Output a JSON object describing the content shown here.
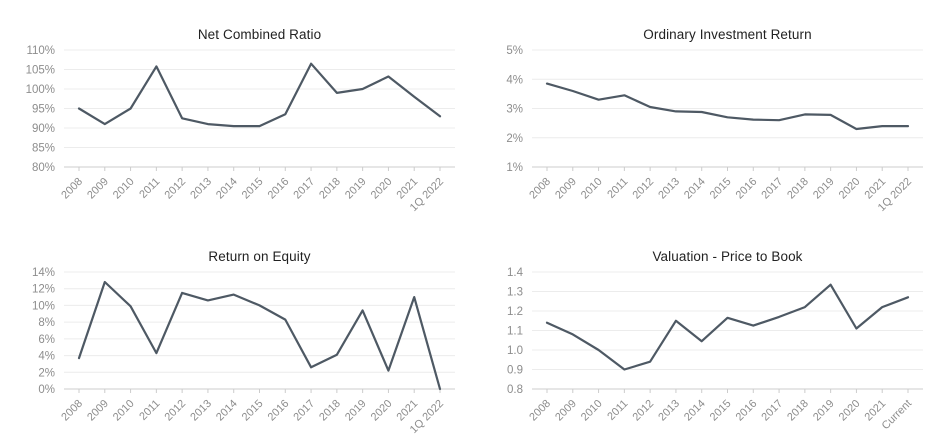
{
  "style": {
    "background": "#ffffff",
    "line_color": "#4e5964",
    "grid_color": "#ececec",
    "axis_color": "#cccccc",
    "tick_label_color": "#8d8d8d",
    "title_color": "#222222"
  },
  "chart_data": [
    {
      "type": "line",
      "title": "Net Combined Ratio",
      "categories": [
        "2008",
        "2009",
        "2010",
        "2011",
        "2012",
        "2013",
        "2014",
        "2015",
        "2016",
        "2017",
        "2018",
        "2019",
        "2020",
        "2021",
        "1Q 2022"
      ],
      "values": [
        95,
        91,
        95,
        105.8,
        92.5,
        91,
        90.5,
        90.5,
        93.5,
        106.5,
        99,
        100,
        103.2,
        98,
        93
      ],
      "ylim": [
        80,
        110
      ],
      "ytick_step": 5,
      "ytick_decimals": 0,
      "ytick_suffix": "%",
      "grid": true,
      "legend": "none",
      "xlabel": "",
      "ylabel": ""
    },
    {
      "type": "line",
      "title": "Ordinary Investment Return",
      "categories": [
        "2008",
        "2009",
        "2010",
        "2011",
        "2012",
        "2013",
        "2014",
        "2015",
        "2016",
        "2017",
        "2018",
        "2019",
        "2020",
        "2021",
        "1Q 2022"
      ],
      "values": [
        3.85,
        3.6,
        3.3,
        3.45,
        3.05,
        2.9,
        2.88,
        2.7,
        2.62,
        2.6,
        2.8,
        2.78,
        2.3,
        2.4,
        2.4
      ],
      "ylim": [
        1,
        5
      ],
      "ytick_step": 1,
      "ytick_decimals": 0,
      "ytick_suffix": "%",
      "grid": true,
      "legend": "none",
      "xlabel": "",
      "ylabel": ""
    },
    {
      "type": "line",
      "title": "Return on Equity",
      "categories": [
        "2008",
        "2009",
        "2010",
        "2011",
        "2012",
        "2013",
        "2014",
        "2015",
        "2016",
        "2017",
        "2018",
        "2019",
        "2020",
        "2021",
        "1Q 2022"
      ],
      "values": [
        3.7,
        12.8,
        9.9,
        4.3,
        11.5,
        10.6,
        11.3,
        10,
        8.3,
        2.6,
        4.1,
        9.4,
        2.2,
        11,
        0
      ],
      "ylim": [
        0,
        14
      ],
      "ytick_step": 2,
      "ytick_decimals": 0,
      "ytick_suffix": "%",
      "grid": true,
      "legend": "none",
      "xlabel": "",
      "ylabel": ""
    },
    {
      "type": "line",
      "title": "Valuation - Price to Book",
      "categories": [
        "2008",
        "2009",
        "2010",
        "2011",
        "2012",
        "2013",
        "2014",
        "2015",
        "2016",
        "2017",
        "2018",
        "2019",
        "2020",
        "2021",
        "Current"
      ],
      "values": [
        1.14,
        1.08,
        1.0,
        0.9,
        0.94,
        1.15,
        1.045,
        1.165,
        1.125,
        1.17,
        1.22,
        1.335,
        1.11,
        1.22,
        1.27
      ],
      "ylim": [
        0.8,
        1.4
      ],
      "ytick_step": 0.1,
      "ytick_decimals": 1,
      "ytick_suffix": "",
      "grid": true,
      "legend": "none",
      "xlabel": "",
      "ylabel": ""
    }
  ]
}
